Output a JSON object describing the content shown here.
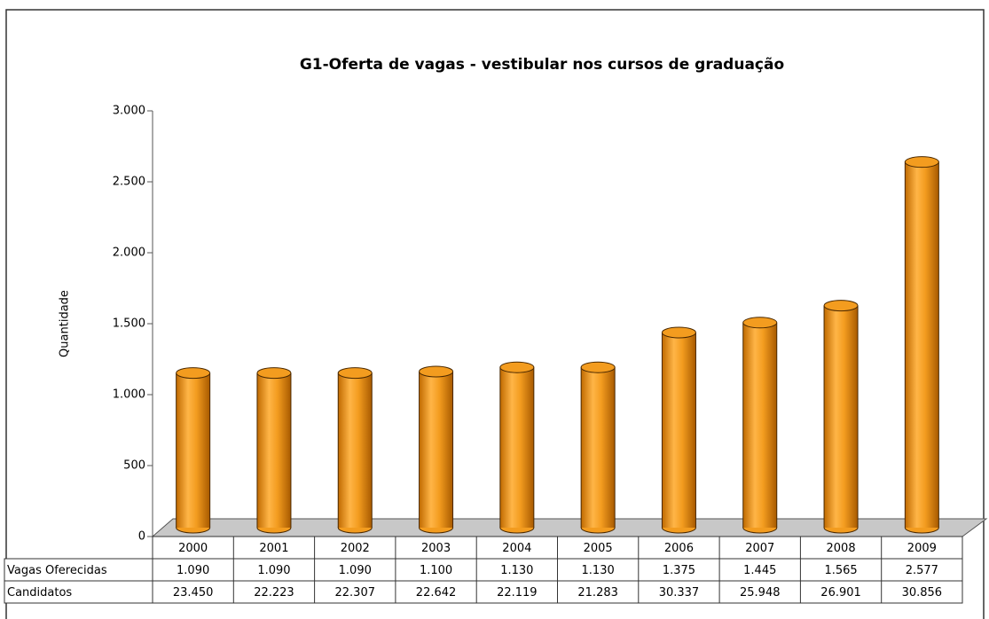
{
  "chart_data": {
    "type": "bar",
    "title": "G1-Oferta de vagas - vestibular nos cursos de graduação",
    "y_label": "Quantidade",
    "categories": [
      "2000",
      "2001",
      "2002",
      "2003",
      "2004",
      "2005",
      "2006",
      "2007",
      "2008",
      "2009"
    ],
    "series": [
      {
        "name": "Vagas Oferecidas",
        "color": "#f39c1f",
        "values": [
          1090,
          1090,
          1090,
          1100,
          1130,
          1130,
          1375,
          1445,
          1565,
          2577
        ],
        "value_labels": [
          "1.090",
          "1.090",
          "1.090",
          "1.100",
          "1.130",
          "1.130",
          "1.375",
          "1.445",
          "1.565",
          "2.577"
        ]
      }
    ],
    "table_rows": [
      {
        "name": "Candidatos",
        "cells": [
          "23.450",
          "22.223",
          "22.307",
          "22.642",
          "22.119",
          "21.283",
          "30.337",
          "25.948",
          "26.901",
          "30.856"
        ]
      }
    ],
    "ylim": [
      0,
      3000
    ],
    "yticks": [
      {
        "value": 0,
        "label": "0"
      },
      {
        "value": 500,
        "label": "500"
      },
      {
        "value": 1000,
        "label": "1.000"
      },
      {
        "value": 1500,
        "label": "1.500"
      },
      {
        "value": 2000,
        "label": "2.000"
      },
      {
        "value": 2500,
        "label": "2.500"
      },
      {
        "value": 3000,
        "label": "3.000"
      }
    ]
  }
}
